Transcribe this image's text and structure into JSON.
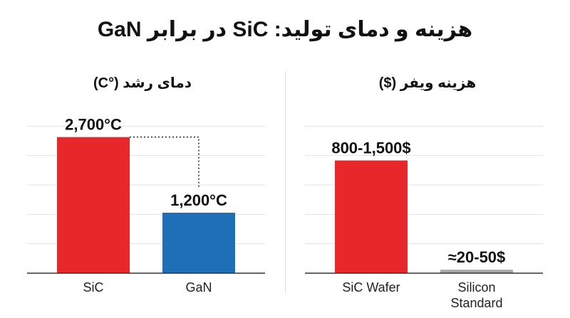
{
  "title": "هزینه و دمای تولید: SiC در برابر GaN",
  "colors": {
    "sic": "#e8272a",
    "gan": "#1f6fb8",
    "silicon": "#a6a6a6",
    "grid": "#e3e3e3",
    "axis": "#333333"
  },
  "chart_data": [
    {
      "type": "bar",
      "title": "دمای رشد (°C)",
      "categories": [
        "SiC",
        "GaN"
      ],
      "values": [
        2700,
        1200
      ],
      "data_labels": [
        "2,700°C",
        "1,200°C"
      ],
      "colors": [
        "#e8272a",
        "#1f6fb8"
      ],
      "ylim": [
        0,
        3500
      ],
      "grid": true,
      "annotation": "dotted connector between bar tops"
    },
    {
      "type": "bar",
      "title": "هزینه ویفر ($)",
      "categories": [
        "SiC Wafer",
        "Silicon Standard"
      ],
      "values": [
        1150,
        35
      ],
      "data_labels": [
        "800-1,500$",
        "≈20-50$"
      ],
      "colors": [
        "#e8272a",
        "#a6a6a6"
      ],
      "ylim": [
        0,
        1800
      ],
      "grid": true
    }
  ]
}
